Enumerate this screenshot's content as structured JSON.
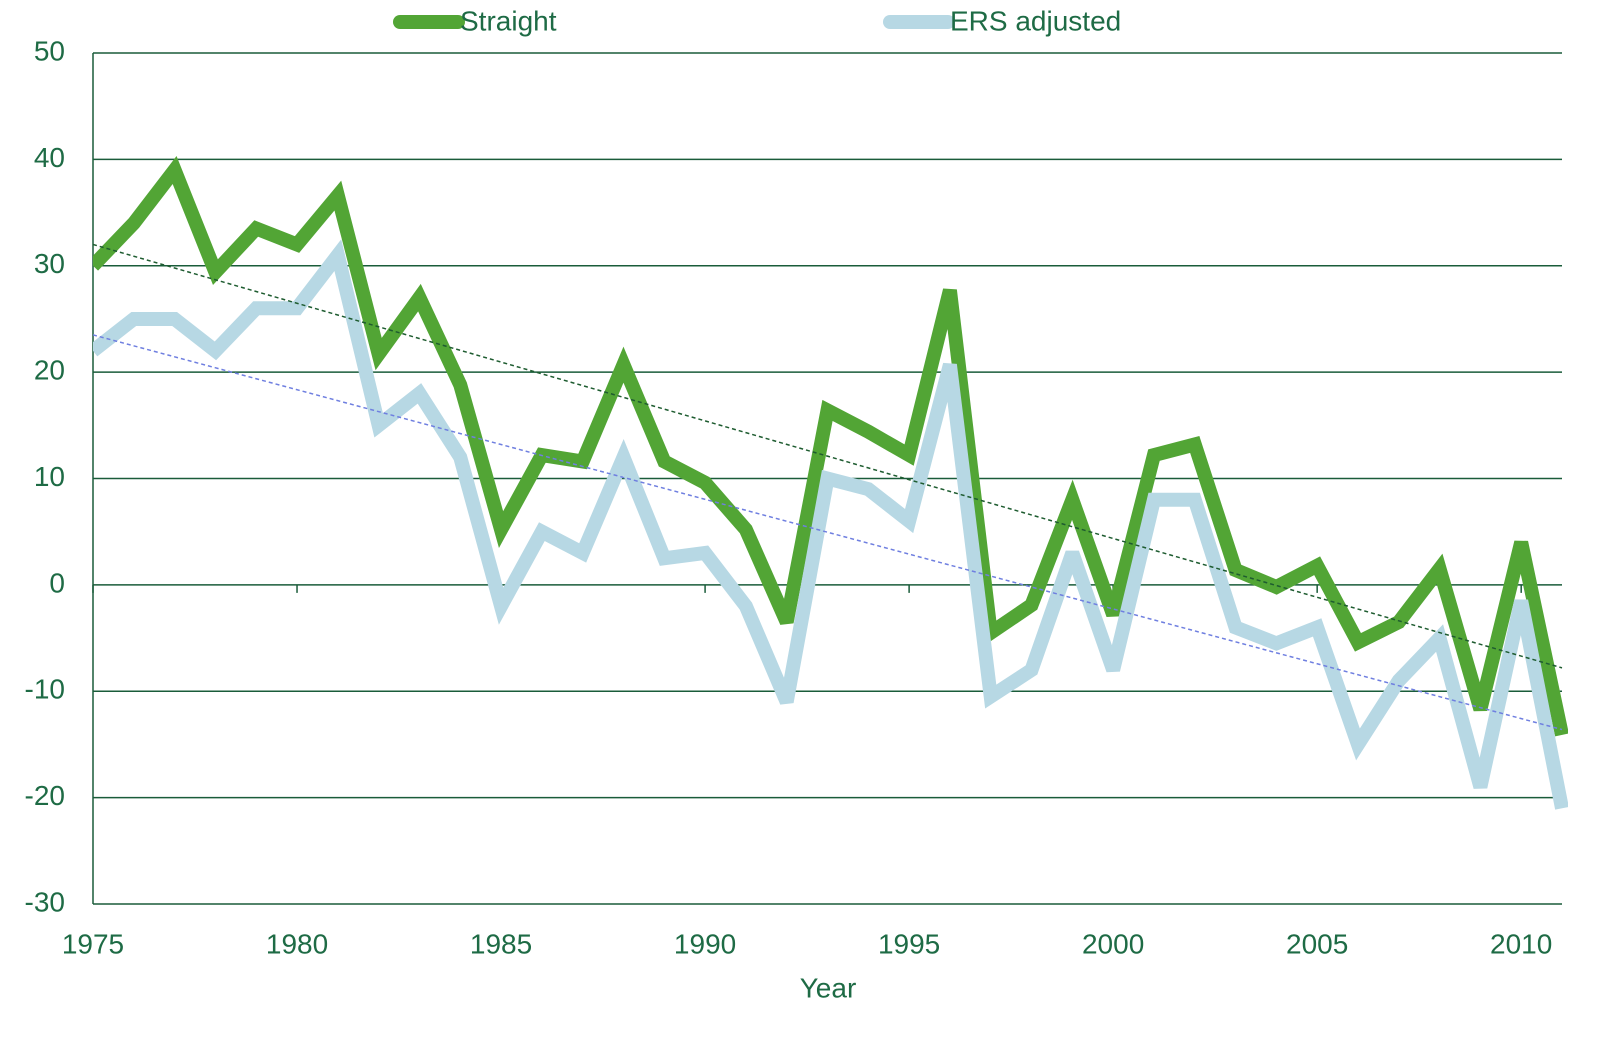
{
  "chart_data": {
    "type": "line",
    "xlabel": "Year",
    "x": [
      1975,
      1976,
      1977,
      1978,
      1979,
      1980,
      1981,
      1982,
      1983,
      1984,
      1985,
      1986,
      1987,
      1988,
      1989,
      1990,
      1991,
      1992,
      1993,
      1994,
      1995,
      1996,
      1997,
      1998,
      1999,
      2000,
      2001,
      2002,
      2003,
      2004,
      2005,
      2006,
      2007,
      2008,
      2009,
      2010,
      2011
    ],
    "series": [
      {
        "name": "Straight",
        "color": "#52a535",
        "values": [
          30,
          34,
          39,
          29.4,
          33.5,
          32,
          36.6,
          21.7,
          27,
          18.8,
          5.2,
          12.2,
          11.6,
          20.7,
          11.6,
          9.6,
          5.2,
          -3.5,
          16.4,
          14.4,
          12.2,
          27.7,
          -4.5,
          -1.9,
          8,
          -2.8,
          12.2,
          13.2,
          1.4,
          -0.2,
          1.8,
          -5.4,
          -3.5,
          1.5,
          -11.7,
          4,
          -14.1
        ]
      },
      {
        "name": "ERS adjusted",
        "color": "#b7d8e4",
        "values": [
          22,
          25,
          25,
          22,
          26,
          26,
          31,
          15,
          18,
          12,
          -2,
          5,
          3,
          12,
          2.5,
          3,
          -2,
          -11,
          10,
          9,
          6,
          20.7,
          -10.5,
          -8,
          3,
          -8,
          8,
          8,
          -4,
          -5.5,
          -4,
          -15,
          -9,
          -5,
          -19,
          -1.5,
          -21
        ]
      }
    ],
    "trendlines": [
      {
        "color": "#1e5c30",
        "x": [
          1975,
          2011
        ],
        "values": [
          32,
          -7.8
        ]
      },
      {
        "color": "#6f7fe0",
        "x": [
          1975,
          2011
        ],
        "values": [
          23.5,
          -13.6
        ]
      }
    ],
    "xlim": [
      1975,
      2011
    ],
    "xticks": [
      1975,
      1980,
      1985,
      1990,
      1995,
      2000,
      2005,
      2010
    ],
    "ylim": [
      -30,
      50
    ],
    "yticks": [
      -30,
      -20,
      -10,
      0,
      10,
      20,
      30,
      40,
      50
    ],
    "grid": true,
    "legend": "top"
  }
}
